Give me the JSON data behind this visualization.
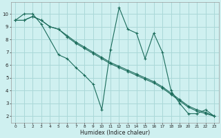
{
  "xlabel": "Humidex (Indice chaleur)",
  "bg_color": "#cff0f0",
  "grid_color": "#aad8d8",
  "line_color": "#1a6b5a",
  "series": [
    {
      "x": [
        0,
        1,
        2,
        3,
        5,
        6,
        7,
        8,
        9,
        10,
        11,
        12,
        13,
        14,
        15,
        16,
        17,
        18,
        19,
        20,
        21,
        22,
        23
      ],
      "y": [
        9.5,
        10.0,
        10.0,
        9.2,
        6.8,
        6.5,
        5.8,
        5.2,
        4.5,
        2.5,
        7.2,
        10.5,
        8.8,
        8.5,
        6.5,
        8.5,
        7.0,
        4.0,
        3.0,
        2.2,
        2.2,
        2.5,
        2.0
      ]
    },
    {
      "x": [
        0,
        1,
        2,
        3,
        4,
        5,
        6,
        7,
        8,
        9,
        10,
        11,
        12,
        13,
        14,
        15,
        16,
        17,
        18,
        19,
        20,
        21,
        22,
        23
      ],
      "y": [
        9.5,
        9.5,
        9.8,
        9.5,
        9.0,
        8.8,
        8.3,
        7.8,
        7.4,
        7.0,
        6.6,
        6.2,
        5.9,
        5.6,
        5.3,
        5.0,
        4.7,
        4.3,
        3.8,
        3.3,
        2.8,
        2.5,
        2.3,
        2.0
      ]
    },
    {
      "x": [
        0,
        1,
        2,
        3,
        4,
        5,
        6,
        7,
        8,
        9,
        10,
        11,
        12,
        13,
        14,
        15,
        16,
        17,
        18,
        19,
        20,
        21,
        22,
        23
      ],
      "y": [
        9.5,
        9.5,
        9.8,
        9.5,
        9.0,
        8.8,
        8.2,
        7.7,
        7.3,
        6.9,
        6.5,
        6.1,
        5.8,
        5.5,
        5.2,
        4.9,
        4.6,
        4.2,
        3.7,
        3.2,
        2.7,
        2.4,
        2.2,
        2.0
      ]
    }
  ],
  "xlim": [
    -0.5,
    23.5
  ],
  "ylim": [
    1.5,
    10.9
  ],
  "xticks": [
    0,
    1,
    2,
    3,
    4,
    5,
    6,
    7,
    8,
    9,
    10,
    11,
    12,
    13,
    14,
    15,
    16,
    17,
    18,
    19,
    20,
    21,
    22,
    23
  ],
  "yticks": [
    2,
    3,
    4,
    5,
    6,
    7,
    8,
    9,
    10
  ]
}
